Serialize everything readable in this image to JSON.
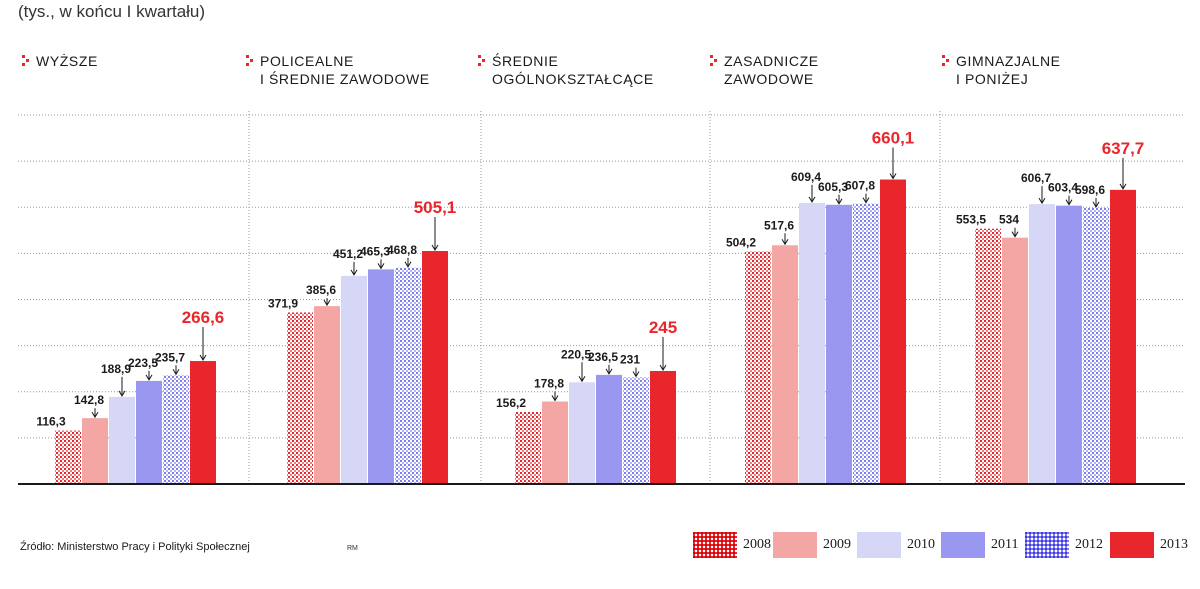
{
  "subtitle": "(tys., w końcu I kwartału)",
  "source": "Źródło: Ministerstwo Pracy i Polityki Społecznej",
  "author": "RM",
  "colors": {
    "2008": "#e8262b",
    "2009": "#f3a6a4",
    "2010": "#d6d6f7",
    "2011": "#9a97f0",
    "2012": "#7f7df0",
    "2013": "#e8262b",
    "highlight_text": "#e8262b",
    "grid": "#9a9a9a",
    "axis": "#1a1a1a"
  },
  "chart_data": {
    "type": "bar",
    "subtitle": "(tys., w końcu I kwartału)",
    "groups": [
      {
        "label_lines": [
          "WYŻSZE"
        ],
        "values": [
          116.3,
          142.8,
          188.9,
          223.5,
          235.7,
          266.6
        ],
        "labels": [
          "116,3",
          "142,8",
          "188,9",
          "223,5",
          "235,7",
          "266,6"
        ]
      },
      {
        "label_lines": [
          "POLICEALNE",
          "I ŚREDNIE ZAWODOWE"
        ],
        "values": [
          371.9,
          385.6,
          451.2,
          465.3,
          468.8,
          505.1
        ],
        "labels": [
          "371,9",
          "385,6",
          "451,2",
          "465,3",
          "468,8",
          "505,1"
        ]
      },
      {
        "label_lines": [
          "ŚREDNIE",
          "OGÓLNOKSZTAŁCĄCE"
        ],
        "values": [
          156.2,
          178.8,
          220.5,
          236.5,
          231,
          245
        ],
        "labels": [
          "156,2",
          "178,8",
          "220,5",
          "236,5",
          "231",
          "245"
        ]
      },
      {
        "label_lines": [
          "ZASADNICZE",
          "ZAWODOWE"
        ],
        "values": [
          504.2,
          517.6,
          609.4,
          605.3,
          607.8,
          660.1
        ],
        "labels": [
          "504,2",
          "517,6",
          "609,4",
          "605,3",
          "607,8",
          "660,1"
        ]
      },
      {
        "label_lines": [
          "GIMNAZJALNE",
          "I PONIŻEJ"
        ],
        "values": [
          553.5,
          534,
          606.7,
          603.4,
          598.6,
          637.7
        ],
        "labels": [
          "553,5",
          "534",
          "606,7",
          "603,4",
          "598,6",
          "637,7"
        ]
      }
    ],
    "series": [
      {
        "name": "2008",
        "pattern": "dots"
      },
      {
        "name": "2009",
        "pattern": "solid"
      },
      {
        "name": "2010",
        "pattern": "solid"
      },
      {
        "name": "2011",
        "pattern": "solid"
      },
      {
        "name": "2012",
        "pattern": "grid"
      },
      {
        "name": "2013",
        "pattern": "solid"
      }
    ],
    "ylim": [
      0,
      800
    ],
    "gridlines": 8,
    "grid": true,
    "legend_position": "bottom-right"
  }
}
